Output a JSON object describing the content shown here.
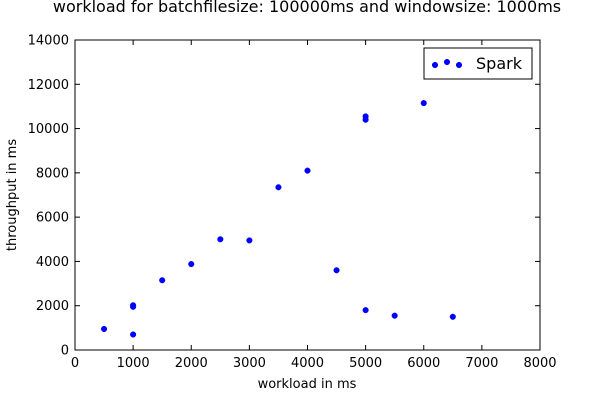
{
  "chart_data": {
    "type": "scatter",
    "title": "workload for batchfilesize: 100000ms and windowsize: 1000ms",
    "xlabel": "workload in ms",
    "ylabel": "throughput in ms",
    "xlim": [
      0,
      8000
    ],
    "ylim": [
      0,
      14000
    ],
    "xticks": [
      0,
      1000,
      2000,
      3000,
      4000,
      5000,
      6000,
      7000,
      8000
    ],
    "yticks": [
      0,
      2000,
      4000,
      6000,
      8000,
      10000,
      12000,
      14000
    ],
    "xtick_labels": [
      "0",
      "1000",
      "2000",
      "3000",
      "4000",
      "5000",
      "6000",
      "7000",
      "8000"
    ],
    "ytick_labels": [
      "0",
      "2000",
      "4000",
      "6000",
      "8000",
      "10000",
      "12000",
      "14000"
    ],
    "grid": false,
    "legend_position": "top-right",
    "series": [
      {
        "name": "Spark",
        "color": "#0000ff",
        "points": [
          {
            "x": 500,
            "y": 950
          },
          {
            "x": 1000,
            "y": 700
          },
          {
            "x": 1000,
            "y": 1950
          },
          {
            "x": 1000,
            "y": 2020
          },
          {
            "x": 1500,
            "y": 3150
          },
          {
            "x": 2000,
            "y": 3880
          },
          {
            "x": 2500,
            "y": 5000
          },
          {
            "x": 3000,
            "y": 4950
          },
          {
            "x": 3500,
            "y": 7350
          },
          {
            "x": 4000,
            "y": 8100
          },
          {
            "x": 4500,
            "y": 3600
          },
          {
            "x": 5000,
            "y": 1800
          },
          {
            "x": 5000,
            "y": 10400
          },
          {
            "x": 5000,
            "y": 10550
          },
          {
            "x": 5500,
            "y": 1550
          },
          {
            "x": 6000,
            "y": 11150
          },
          {
            "x": 6500,
            "y": 1500
          }
        ]
      }
    ]
  }
}
